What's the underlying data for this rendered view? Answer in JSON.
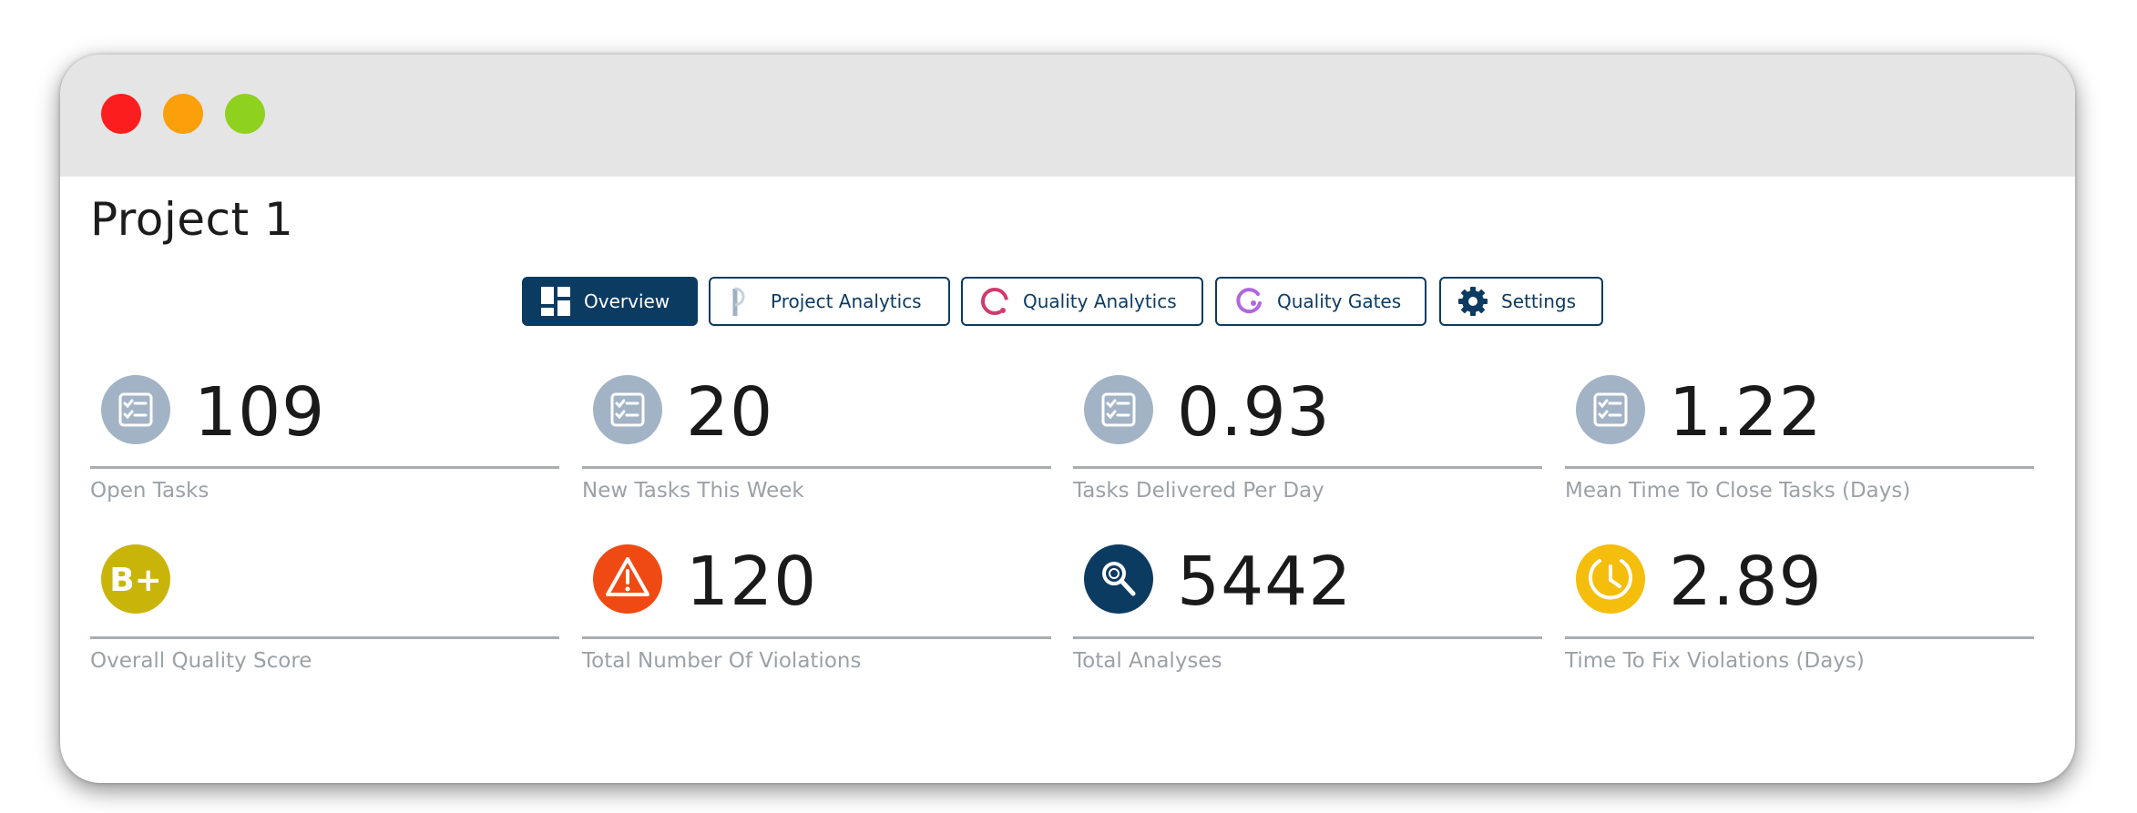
{
  "window": {
    "title": "Project 1",
    "controls": {
      "close_color": "#fc1e1e",
      "minimize_color": "#fb9f0a",
      "maximize_color": "#8fd11f"
    }
  },
  "colors": {
    "primary": "#0c3b62",
    "task_icon": "#a3b3c6",
    "grade": "#c9b40a",
    "violation": "#f04a14",
    "analysis": "#0c3b62",
    "time_to_fix": "#f5bd0c",
    "quality_analytics_accent": "#d13a6e",
    "quality_gates_accent": "#b266e0"
  },
  "tabs": [
    {
      "label": "Overview",
      "icon": "dashboard-icon",
      "active": true
    },
    {
      "label": "Project Analytics",
      "icon": "project-analytics-icon",
      "active": false
    },
    {
      "label": "Quality Analytics",
      "icon": "quality-analytics-icon",
      "active": false
    },
    {
      "label": "Quality Gates",
      "icon": "quality-gates-icon",
      "active": false
    },
    {
      "label": "Settings",
      "icon": "gear-icon",
      "active": false
    }
  ],
  "metrics": [
    {
      "value": "109",
      "label": "Open Tasks",
      "icon": "task-list-icon"
    },
    {
      "value": "20",
      "label": "New Tasks This Week",
      "icon": "task-list-icon"
    },
    {
      "value": "0.93",
      "label": "Tasks Delivered Per Day",
      "icon": "task-list-icon"
    },
    {
      "value": "1.22",
      "label": "Mean Time To Close Tasks (Days)",
      "icon": "task-list-icon"
    },
    {
      "value": "",
      "grade": "B+",
      "label": "Overall Quality Score",
      "icon": "grade-badge-icon"
    },
    {
      "value": "120",
      "label": "Total Number Of Violations",
      "icon": "warning-icon"
    },
    {
      "value": "5442",
      "label": "Total Analyses",
      "icon": "magnifier-icon"
    },
    {
      "value": "2.89",
      "label": "Time To Fix Violations (Days)",
      "icon": "clock-icon"
    }
  ]
}
